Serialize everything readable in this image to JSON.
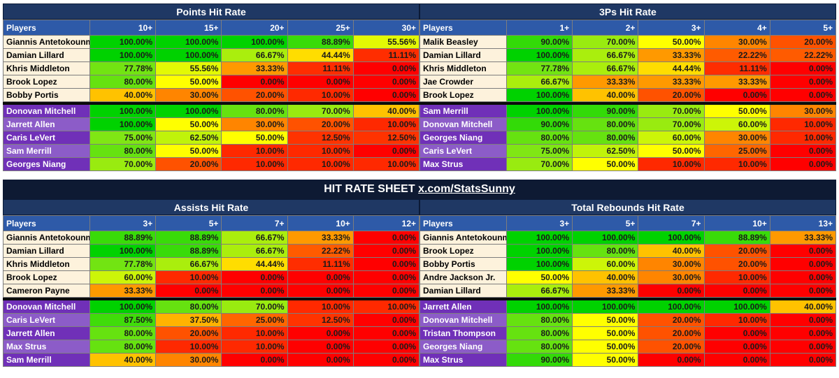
{
  "banner": {
    "text": "HIT RATE SHEET",
    "link": "x.com/StatsSunny"
  },
  "sections": [
    {
      "title": "Points Hit Rate",
      "header": "Players",
      "thresholds": [
        "10+",
        "15+",
        "20+",
        "25+",
        "30+"
      ],
      "mil": [
        {
          "player": "Giannis Antetokounmpo",
          "values": [
            "100.00%",
            "100.00%",
            "100.00%",
            "88.89%",
            "55.56%"
          ]
        },
        {
          "player": "Damian Lillard",
          "values": [
            "100.00%",
            "100.00%",
            "66.67%",
            "44.44%",
            "11.11%"
          ]
        },
        {
          "player": "Khris Middleton",
          "values": [
            "77.78%",
            "55.56%",
            "33.33%",
            "11.11%",
            "0.00%"
          ]
        },
        {
          "player": "Brook Lopez",
          "values": [
            "80.00%",
            "50.00%",
            "0.00%",
            "0.00%",
            "0.00%"
          ]
        },
        {
          "player": "Bobby Portis",
          "values": [
            "40.00%",
            "30.00%",
            "20.00%",
            "10.00%",
            "0.00%"
          ]
        }
      ],
      "cle": [
        {
          "player": "Donovan Mitchell",
          "values": [
            "100.00%",
            "100.00%",
            "80.00%",
            "70.00%",
            "40.00%"
          ]
        },
        {
          "player": "Jarrett Allen",
          "values": [
            "100.00%",
            "50.00%",
            "30.00%",
            "20.00%",
            "10.00%"
          ]
        },
        {
          "player": "Caris LeVert",
          "values": [
            "75.00%",
            "62.50%",
            "50.00%",
            "12.50%",
            "12.50%"
          ]
        },
        {
          "player": "Sam Merrill",
          "values": [
            "80.00%",
            "50.00%",
            "10.00%",
            "10.00%",
            "0.00%"
          ]
        },
        {
          "player": "Georges Niang",
          "values": [
            "70.00%",
            "20.00%",
            "10.00%",
            "10.00%",
            "10.00%"
          ]
        }
      ]
    },
    {
      "title": "3Ps Hit Rate",
      "header": "Players",
      "thresholds": [
        "1+",
        "2+",
        "3+",
        "4+",
        "5+"
      ],
      "mil": [
        {
          "player": "Malik Beasley",
          "values": [
            "90.00%",
            "70.00%",
            "50.00%",
            "30.00%",
            "20.00%"
          ]
        },
        {
          "player": "Damian Lillard",
          "values": [
            "100.00%",
            "66.67%",
            "33.33%",
            "22.22%",
            "22.22%"
          ]
        },
        {
          "player": "Khris Middleton",
          "values": [
            "77.78%",
            "66.67%",
            "44.44%",
            "11.11%",
            "0.00%"
          ]
        },
        {
          "player": "Jae Crowder",
          "values": [
            "66.67%",
            "33.33%",
            "33.33%",
            "33.33%",
            "0.00%"
          ]
        },
        {
          "player": "Brook Lopez",
          "values": [
            "100.00%",
            "40.00%",
            "20.00%",
            "0.00%",
            "0.00%"
          ]
        }
      ],
      "cle": [
        {
          "player": "Sam Merrill",
          "values": [
            "100.00%",
            "90.00%",
            "70.00%",
            "50.00%",
            "30.00%"
          ]
        },
        {
          "player": "Donovan Mitchell",
          "values": [
            "90.00%",
            "80.00%",
            "70.00%",
            "60.00%",
            "10.00%"
          ]
        },
        {
          "player": "Georges Niang",
          "values": [
            "80.00%",
            "80.00%",
            "60.00%",
            "30.00%",
            "10.00%"
          ]
        },
        {
          "player": "Caris LeVert",
          "values": [
            "75.00%",
            "62.50%",
            "50.00%",
            "25.00%",
            "0.00%"
          ]
        },
        {
          "player": "Max Strus",
          "values": [
            "70.00%",
            "50.00%",
            "10.00%",
            "10.00%",
            "0.00%"
          ]
        }
      ]
    },
    {
      "title": "Assists Hit Rate",
      "header": "Players",
      "thresholds": [
        "3+",
        "5+",
        "7+",
        "10+",
        "12+"
      ],
      "mil": [
        {
          "player": "Giannis Antetokounmpo",
          "values": [
            "88.89%",
            "88.89%",
            "66.67%",
            "33.33%",
            "0.00%"
          ]
        },
        {
          "player": "Damian Lillard",
          "values": [
            "100.00%",
            "88.89%",
            "66.67%",
            "22.22%",
            "0.00%"
          ]
        },
        {
          "player": "Khris Middleton",
          "values": [
            "77.78%",
            "66.67%",
            "44.44%",
            "11.11%",
            "0.00%"
          ]
        },
        {
          "player": "Brook Lopez",
          "values": [
            "60.00%",
            "10.00%",
            "0.00%",
            "0.00%",
            "0.00%"
          ]
        },
        {
          "player": "Cameron Payne",
          "values": [
            "33.33%",
            "0.00%",
            "0.00%",
            "0.00%",
            "0.00%"
          ]
        }
      ],
      "cle": [
        {
          "player": "Donovan Mitchell",
          "values": [
            "100.00%",
            "80.00%",
            "70.00%",
            "10.00%",
            "10.00%"
          ]
        },
        {
          "player": "Caris LeVert",
          "values": [
            "87.50%",
            "37.50%",
            "25.00%",
            "12.50%",
            "0.00%"
          ]
        },
        {
          "player": "Jarrett Allen",
          "values": [
            "80.00%",
            "20.00%",
            "10.00%",
            "0.00%",
            "0.00%"
          ]
        },
        {
          "player": "Max Strus",
          "values": [
            "80.00%",
            "10.00%",
            "10.00%",
            "0.00%",
            "0.00%"
          ]
        },
        {
          "player": "Sam Merrill",
          "values": [
            "40.00%",
            "30.00%",
            "0.00%",
            "0.00%",
            "0.00%"
          ]
        }
      ]
    },
    {
      "title": "Total Rebounds Hit Rate",
      "header": "Players",
      "thresholds": [
        "3+",
        "5+",
        "7+",
        "10+",
        "13+"
      ],
      "mil": [
        {
          "player": "Giannis Antetokounmpo",
          "values": [
            "100.00%",
            "100.00%",
            "100.00%",
            "88.89%",
            "33.33%"
          ]
        },
        {
          "player": "Brook Lopez",
          "values": [
            "100.00%",
            "80.00%",
            "40.00%",
            "20.00%",
            "0.00%"
          ]
        },
        {
          "player": "Bobby Portis",
          "values": [
            "100.00%",
            "60.00%",
            "30.00%",
            "20.00%",
            "0.00%"
          ]
        },
        {
          "player": "Andre Jackson Jr.",
          "values": [
            "50.00%",
            "40.00%",
            "30.00%",
            "10.00%",
            "0.00%"
          ]
        },
        {
          "player": "Damian Lillard",
          "values": [
            "66.67%",
            "33.33%",
            "0.00%",
            "0.00%",
            "0.00%"
          ]
        }
      ],
      "cle": [
        {
          "player": "Jarrett Allen",
          "values": [
            "100.00%",
            "100.00%",
            "100.00%",
            "100.00%",
            "40.00%"
          ]
        },
        {
          "player": "Donovan Mitchell",
          "values": [
            "80.00%",
            "50.00%",
            "20.00%",
            "10.00%",
            "0.00%"
          ]
        },
        {
          "player": "Tristan Thompson",
          "values": [
            "80.00%",
            "50.00%",
            "20.00%",
            "0.00%",
            "0.00%"
          ]
        },
        {
          "player": "Georges Niang",
          "values": [
            "80.00%",
            "50.00%",
            "20.00%",
            "0.00%",
            "0.00%"
          ]
        },
        {
          "player": "Max Strus",
          "values": [
            "90.00%",
            "50.00%",
            "0.00%",
            "0.00%",
            "0.00%"
          ]
        }
      ]
    }
  ]
}
